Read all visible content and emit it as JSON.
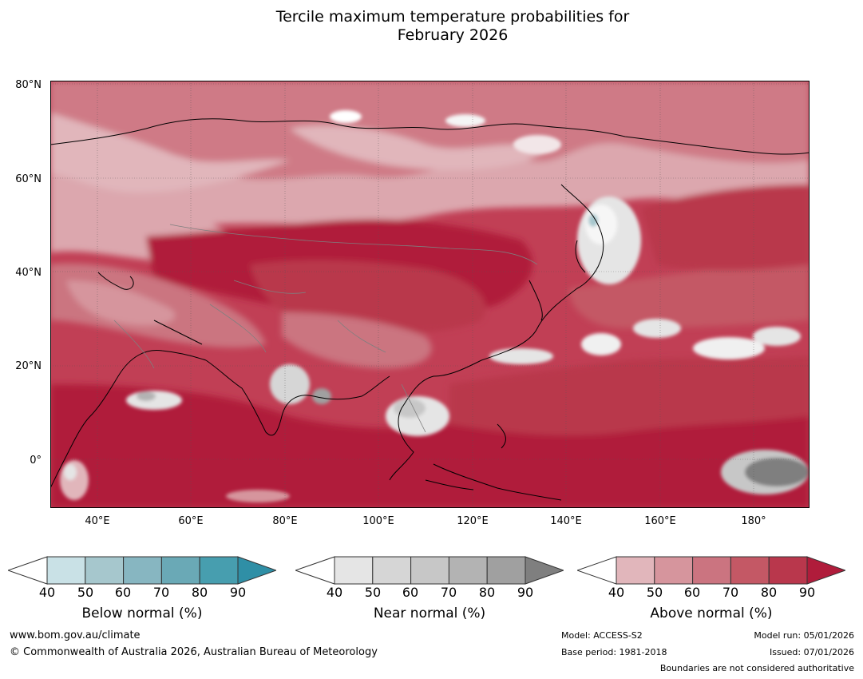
{
  "title_line1": "Tercile maximum temperature probabilities for",
  "title_line2": "February 2026",
  "map": {
    "lat_labels": [
      "80°N",
      "60°N",
      "40°N",
      "20°N",
      "0°"
    ],
    "lon_labels": [
      "40°E",
      "60°E",
      "80°E",
      "100°E",
      "120°E",
      "140°E",
      "160°E",
      "180°"
    ],
    "extent": {
      "lon_min": 30,
      "lon_max": 192,
      "lat_min": -10,
      "lat_max": 81
    }
  },
  "legends": [
    {
      "name": "below",
      "title": "Below normal (%)",
      "ticks": [
        "40",
        "50",
        "60",
        "70",
        "80",
        "90"
      ],
      "colors": [
        "#c9e1e6",
        "#a6c7cd",
        "#87b6c1",
        "#6aa9b6",
        "#479eaf",
        "#2f8fa6"
      ]
    },
    {
      "name": "near",
      "title": "Near normal (%)",
      "ticks": [
        "40",
        "50",
        "60",
        "70",
        "80",
        "90"
      ],
      "colors": [
        "#e5e5e5",
        "#d6d6d6",
        "#c7c7c7",
        "#b3b3b3",
        "#a0a0a0",
        "#7f7f7f"
      ]
    },
    {
      "name": "above",
      "title": "Above normal (%)",
      "ticks": [
        "40",
        "50",
        "60",
        "70",
        "80",
        "90"
      ],
      "colors": [
        "#e1b6bb",
        "#d6959d",
        "#cb7480",
        "#c45865",
        "#b9374c",
        "#b01c3b"
      ]
    }
  ],
  "footer": {
    "website": "www.bom.gov.au/climate",
    "copyright": "© Commonwealth of Australia 2026, Australian Bureau of Meteorology",
    "model": "Model: ACCESS-S2",
    "base_period": "Base period: 1981-2018",
    "model_run": "Model run: 05/01/2026",
    "issued": "Issued: 07/01/2026",
    "disclaimer": "Boundaries are not considered authoritative"
  }
}
